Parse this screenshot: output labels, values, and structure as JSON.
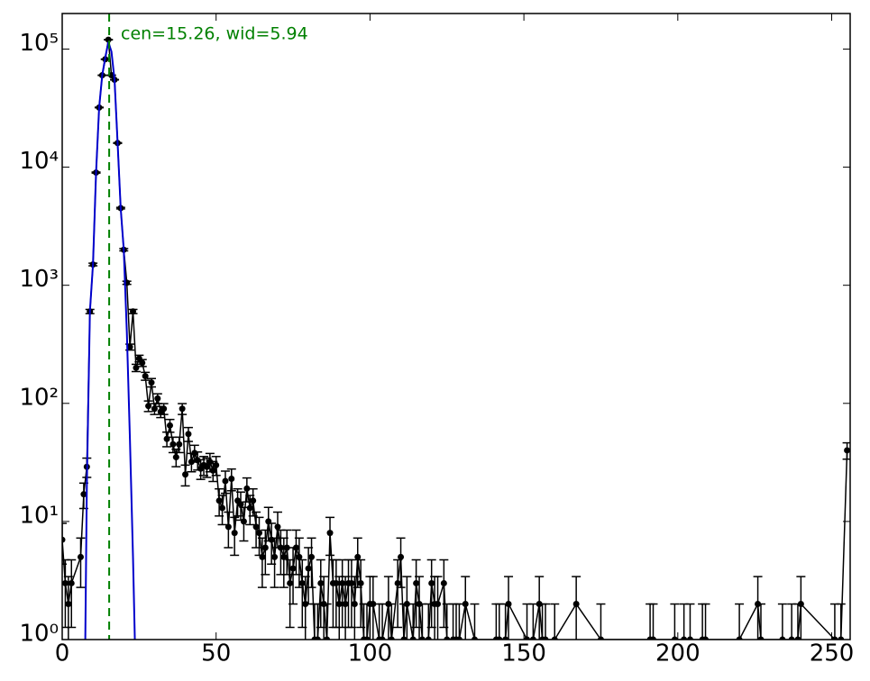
{
  "chart_data": {
    "type": "errorbar",
    "annotation": "cen=15.26, wid=5.94",
    "vline": 15.26,
    "vline_color": "#008000",
    "log_y": true,
    "error_bars": "sqrt",
    "xlim": [
      0,
      256
    ],
    "ylim": [
      1,
      200000
    ],
    "xticks": [
      0,
      50,
      100,
      150,
      200,
      250
    ],
    "yticks": [
      {
        "value": 1,
        "label": "10⁰"
      },
      {
        "value": 10,
        "label": "10¹"
      },
      {
        "value": 100,
        "label": "10²"
      },
      {
        "value": 1000,
        "label": "10³"
      },
      {
        "value": 10000,
        "label": "10⁴"
      },
      {
        "value": 100000,
        "label": "10⁵"
      }
    ],
    "series": [
      {
        "color": "#000000",
        "x": [
          0,
          1,
          2,
          3,
          6,
          7,
          8,
          9,
          10,
          11,
          12,
          13,
          14,
          15,
          16,
          17,
          18,
          19,
          20,
          21,
          22,
          23,
          24,
          25,
          26,
          27,
          28,
          29,
          30,
          31,
          32,
          33,
          34,
          35,
          36,
          37,
          38,
          39,
          40,
          41,
          42,
          43,
          44,
          45,
          46,
          47,
          48,
          49,
          50,
          51,
          52,
          53,
          54,
          55,
          56,
          57,
          58,
          59,
          60,
          61,
          62,
          63,
          64,
          65,
          66,
          67,
          68,
          69,
          70,
          71,
          72,
          73,
          74,
          75,
          76,
          77,
          78,
          79,
          80,
          81,
          82,
          83,
          84,
          85,
          86,
          87,
          88,
          89,
          90,
          91,
          92,
          93,
          94,
          95,
          96,
          97,
          98,
          99,
          100,
          101,
          103,
          104,
          106,
          107,
          109,
          110,
          111,
          112,
          114,
          115,
          116,
          117,
          119,
          120,
          121,
          122,
          124,
          125,
          127,
          128,
          129,
          131,
          134,
          141,
          142,
          144,
          145,
          151,
          153,
          155,
          156,
          157,
          160,
          167,
          175,
          191,
          192,
          199,
          202,
          204,
          208,
          209,
          220,
          226,
          227,
          234,
          237,
          239,
          240,
          251,
          253,
          255
        ],
        "values": [
          7,
          3,
          2,
          3,
          5,
          17,
          29,
          600,
          1500,
          9000,
          32000,
          60000,
          82000,
          120000,
          60000,
          55000,
          16000,
          4500,
          2000,
          1050,
          300,
          600,
          200,
          240,
          220,
          170,
          95,
          150,
          90,
          110,
          85,
          90,
          50,
          65,
          45,
          35,
          45,
          90,
          25,
          55,
          32,
          38,
          33,
          28,
          30,
          29,
          32,
          27,
          30,
          15,
          13,
          22,
          9,
          23,
          8,
          15,
          14,
          10,
          19,
          13,
          15,
          9,
          8,
          5,
          6,
          10,
          7,
          5,
          9,
          6,
          5,
          6,
          3,
          4,
          6,
          5,
          3,
          2,
          4,
          5,
          1,
          1,
          3,
          2,
          1,
          8,
          3,
          3,
          2,
          3,
          2,
          3,
          3,
          2,
          5,
          3,
          1,
          1,
          2,
          2,
          1,
          1,
          2,
          1,
          3,
          5,
          1,
          2,
          1,
          3,
          2,
          1,
          1,
          3,
          2,
          2,
          3,
          1,
          1,
          1,
          1,
          2,
          1,
          1,
          1,
          1,
          2,
          1,
          1,
          2,
          1,
          1,
          1,
          2,
          1,
          1,
          1,
          1,
          1,
          1,
          1,
          1,
          1,
          2,
          1,
          1,
          1,
          1,
          2,
          1,
          1,
          40
        ]
      },
      {
        "color": "#0000cc",
        "x": [
          7.5,
          8,
          9,
          10,
          11,
          12,
          13,
          14,
          15,
          16,
          17,
          18,
          19,
          20,
          21,
          22,
          23,
          23.6
        ],
        "values": [
          1,
          20,
          600,
          1500,
          9000,
          32000,
          60000,
          85000,
          115000,
          95000,
          55000,
          16000,
          4500,
          2000,
          400,
          50,
          5,
          1
        ]
      }
    ]
  }
}
